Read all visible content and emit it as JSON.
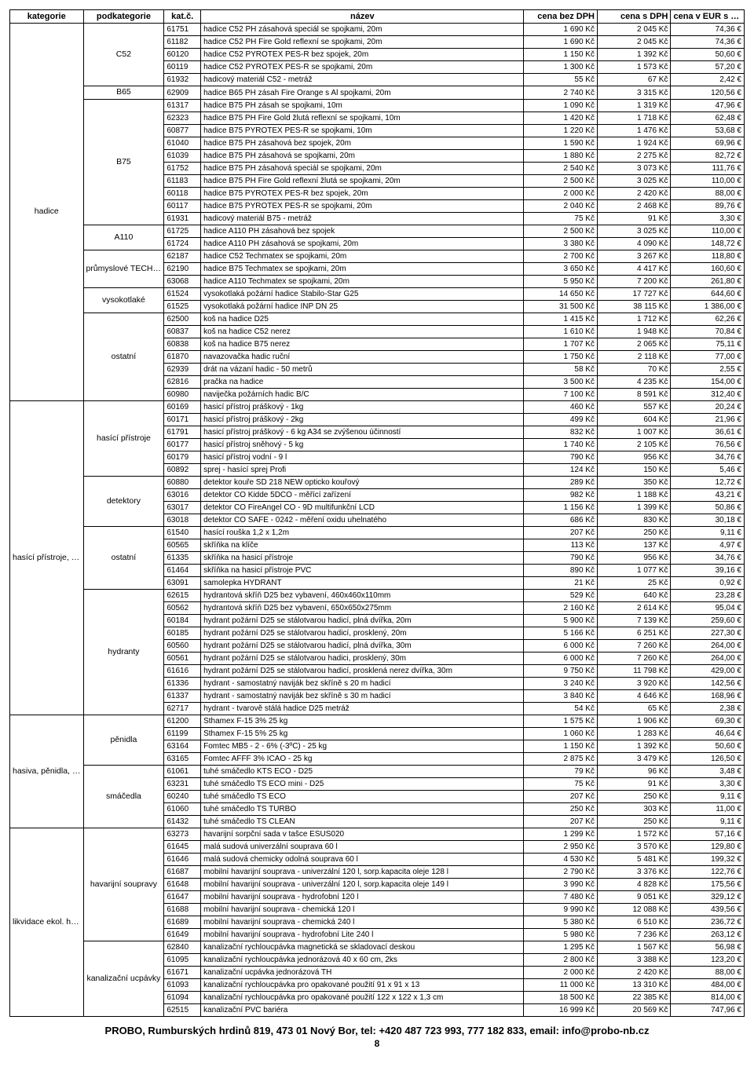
{
  "headers": {
    "kategorie": "kategorie",
    "podkategorie": "podkategorie",
    "katc": "kat.č.",
    "nazev": "název",
    "cena_bez": "cena bez DPH",
    "cena_s": "cena s DPH",
    "cena_eur": "cena v EUR s DPH"
  },
  "footer": "PROBO, Rumburských hrdinů 819, 473 01 Nový Bor, tel: +420 487 723 993, 777 182 833, email: info@probo-nb.cz",
  "page_number": "8",
  "categories": [
    {
      "name": "hadice",
      "subcategories": [
        {
          "name": "C52",
          "rows": [
            {
              "k": "61751",
              "n": "hadice C52 PH zásahová speciál se spojkami, 20m",
              "c1": "1 690 Kč",
              "c2": "2 045 Kč",
              "c3": "74,36 €"
            },
            {
              "k": "61182",
              "n": "hadice C52 PH Fire Gold  reflexní se spojkami, 20m",
              "c1": "1 690 Kč",
              "c2": "2 045 Kč",
              "c3": "74,36 €"
            },
            {
              "k": "60120",
              "n": "hadice C52 PYROTEX  PES-R bez spojek, 20m",
              "c1": "1 150 Kč",
              "c2": "1 392 Kč",
              "c3": "50,60 €"
            },
            {
              "k": "60119",
              "n": "hadice C52 PYROTEX  PES-R se spojkami, 20m",
              "c1": "1 300 Kč",
              "c2": "1 573 Kč",
              "c3": "57,20 €"
            },
            {
              "k": "61932",
              "n": "hadicový materiál C52 - metráž",
              "c1": "55 Kč",
              "c2": "67 Kč",
              "c3": "2,42 €"
            }
          ]
        },
        {
          "name": "B65",
          "rows": [
            {
              "k": "62909",
              "n": "hadice B65 PH zásah Fire Orange s Al spojkami, 20m",
              "c1": "2 740 Kč",
              "c2": "3 315 Kč",
              "c3": "120,56 €"
            }
          ]
        },
        {
          "name": "B75",
          "rows": [
            {
              "k": "61317",
              "n": "hadice B75 PH zásah se spojkami, 10m",
              "c1": "1 090 Kč",
              "c2": "1 319 Kč",
              "c3": "47,96 €"
            },
            {
              "k": "62323",
              "n": "hadice B75 PH Fire Gold žlutá reflexní se spojkami, 10m",
              "c1": "1 420 Kč",
              "c2": "1 718 Kč",
              "c3": "62,48 €"
            },
            {
              "k": "60877",
              "n": "hadice B75 PYROTEX PES-R se spojkami, 10m",
              "c1": "1 220 Kč",
              "c2": "1 476 Kč",
              "c3": "53,68 €"
            },
            {
              "k": "61040",
              "n": "hadice B75 PH zásahová bez spojek, 20m",
              "c1": "1 590 Kč",
              "c2": "1 924 Kč",
              "c3": "69,96 €"
            },
            {
              "k": "61039",
              "n": "hadice B75 PH zásahová se spojkami, 20m",
              "c1": "1 880 Kč",
              "c2": "2 275 Kč",
              "c3": "82,72 €"
            },
            {
              "k": "61752",
              "n": "hadice B75 PH zásahová speciál se spojkami, 20m",
              "c1": "2 540 Kč",
              "c2": "3 073 Kč",
              "c3": "111,76 €"
            },
            {
              "k": "61183",
              "n": "hadice B75 PH Fire Gold  reflexní žlutá se spojkami, 20m",
              "c1": "2 500 Kč",
              "c2": "3 025 Kč",
              "c3": "110,00 €"
            },
            {
              "k": "60118",
              "n": "hadice B75  PYROTEX  PES-R bez spojek, 20m",
              "c1": "2 000 Kč",
              "c2": "2 420 Kč",
              "c3": "88,00 €"
            },
            {
              "k": "60117",
              "n": "hadice B75 PYROTEX PES-R se spojkami, 20m",
              "c1": "2 040 Kč",
              "c2": "2 468 Kč",
              "c3": "89,76 €"
            },
            {
              "k": "61931",
              "n": "hadicový materiál B75 - metráž",
              "c1": "75 Kč",
              "c2": "91 Kč",
              "c3": "3,30 €"
            }
          ]
        },
        {
          "name": "A110",
          "rows": [
            {
              "k": "61725",
              "n": "hadice A110 PH zásahová bez spojek",
              "c1": "2 500 Kč",
              "c2": "3 025 Kč",
              "c3": "110,00 €"
            },
            {
              "k": "61724",
              "n": "hadice A110 PH zásahová se spojkami, 20m",
              "c1": "3 380 Kč",
              "c2": "4 090 Kč",
              "c3": "148,72 €"
            }
          ]
        },
        {
          "name": "průmyslové TECHMATEX",
          "rows": [
            {
              "k": "62187",
              "n": "hadice C52 Techmatex se spojkami, 20m",
              "c1": "2 700 Kč",
              "c2": "3 267 Kč",
              "c3": "118,80 €"
            },
            {
              "k": "62190",
              "n": "hadice B75 Techmatex se spojkami, 20m",
              "c1": "3 650 Kč",
              "c2": "4 417 Kč",
              "c3": "160,60 €"
            },
            {
              "k": "63068",
              "n": "hadice A110 Techmatex se spojkami, 20m",
              "c1": "5 950 Kč",
              "c2": "7 200 Kč",
              "c3": "261,80 €"
            }
          ]
        },
        {
          "name": "vysokotlaké",
          "rows": [
            {
              "k": "61524",
              "n": "vysokotlaká požární hadice Stabilo-Star G25",
              "c1": "14 650 Kč",
              "c2": "17 727 Kč",
              "c3": "644,60 €"
            },
            {
              "k": "61525",
              "n": "vysokotlaká požární hadice INP DN 25",
              "c1": "31 500 Kč",
              "c2": "38 115 Kč",
              "c3": "1 386,00 €"
            }
          ]
        },
        {
          "name": "ostatní",
          "rows": [
            {
              "k": "62500",
              "n": "koš na hadice D25",
              "c1": "1 415 Kč",
              "c2": "1 712 Kč",
              "c3": "62,26 €"
            },
            {
              "k": "60837",
              "n": "koš na hadice C52 nerez",
              "c1": "1 610 Kč",
              "c2": "1 948 Kč",
              "c3": "70,84 €"
            },
            {
              "k": "60838",
              "n": "koš na hadice B75 nerez",
              "c1": "1 707 Kč",
              "c2": "2 065 Kč",
              "c3": "75,11 €"
            },
            {
              "k": "61870",
              "n": "navazovačka hadic ruční",
              "c1": "1 750 Kč",
              "c2": "2 118 Kč",
              "c3": "77,00 €"
            },
            {
              "k": "62939",
              "n": "drát na vázaní hadic - 50 metrů",
              "c1": "58 Kč",
              "c2": "70 Kč",
              "c3": "2,55 €"
            },
            {
              "k": "62816",
              "n": "pračka na hadice",
              "c1": "3 500 Kč",
              "c2": "4 235 Kč",
              "c3": "154,00 €"
            },
            {
              "k": "60980",
              "n": "naviječka požárních hadic B/C",
              "c1": "7 100 Kč",
              "c2": "8 591 Kč",
              "c3": "312,40 €"
            }
          ]
        }
      ]
    },
    {
      "name": "hasící přístroje, hydranty",
      "subcategories": [
        {
          "name": "hasící přístroje",
          "rows": [
            {
              "k": "60169",
              "n": "hasicí přístroj práškový - 1kg",
              "c1": "460 Kč",
              "c2": "557 Kč",
              "c3": "20,24 €"
            },
            {
              "k": "60171",
              "n": "hasicí přístroj práškový - 2kg",
              "c1": "499 Kč",
              "c2": "604 Kč",
              "c3": "21,96 €"
            },
            {
              "k": "61791",
              "n": "hasicí přístroj práškový - 6 kg A34 se zvýšenou účinností",
              "c1": "832 Kč",
              "c2": "1 007 Kč",
              "c3": "36,61 €"
            },
            {
              "k": "60177",
              "n": "hasicí přístroj sněhový - 5 kg",
              "c1": "1 740 Kč",
              "c2": "2 105 Kč",
              "c3": "76,56 €"
            },
            {
              "k": "60179",
              "n": "hasicí přístroj vodní - 9 l",
              "c1": "790 Kč",
              "c2": "956 Kč",
              "c3": "34,76 €"
            },
            {
              "k": "60892",
              "n": "sprej - hasící sprej Profi",
              "c1": "124 Kč",
              "c2": "150 Kč",
              "c3": "5,46 €"
            }
          ]
        },
        {
          "name": "detektory",
          "rows": [
            {
              "k": "60880",
              "n": "detektor kouře SD 218 NEW opticko kouřový",
              "c1": "289 Kč",
              "c2": "350 Kč",
              "c3": "12,72 €"
            },
            {
              "k": "63016",
              "n": "detektor CO Kidde 5DCO - měřící zařízení",
              "c1": "982 Kč",
              "c2": "1 188 Kč",
              "c3": "43,21 €"
            },
            {
              "k": "63017",
              "n": "detektor CO FireAngel CO - 9D multifunkční LCD",
              "c1": "1 156 Kč",
              "c2": "1 399 Kč",
              "c3": "50,86 €"
            },
            {
              "k": "63018",
              "n": "detektor CO SAFE - 0242 - měření oxidu uhelnatého",
              "c1": "686 Kč",
              "c2": "830 Kč",
              "c3": "30,18 €"
            }
          ]
        },
        {
          "name": "ostatní",
          "rows": [
            {
              "k": "61540",
              "n": "hasící rouška 1,2 x 1,2m",
              "c1": "207 Kč",
              "c2": "250 Kč",
              "c3": "9,11 €"
            },
            {
              "k": "60565",
              "n": "skříňka na klíče",
              "c1": "113 Kč",
              "c2": "137 Kč",
              "c3": "4,97 €"
            },
            {
              "k": "61335",
              "n": "skříňka na hasicí přístroje",
              "c1": "790 Kč",
              "c2": "956 Kč",
              "c3": "34,76 €"
            },
            {
              "k": "61464",
              "n": "skříňka na hasicí přístroje PVC",
              "c1": "890 Kč",
              "c2": "1 077 Kč",
              "c3": "39,16 €"
            },
            {
              "k": "63091",
              "n": "samolepka HYDRANT",
              "c1": "21 Kč",
              "c2": "25 Kč",
              "c3": "0,92 €"
            }
          ]
        },
        {
          "name": "hydranty",
          "rows": [
            {
              "k": "62615",
              "n": "hydrantová skříň  D25 bez vybavení, 460x460x110mm",
              "c1": "529 Kč",
              "c2": "640 Kč",
              "c3": "23,28 €"
            },
            {
              "k": "60562",
              "n": "hydrantová skříň  D25 bez vybavení, 650x650x275mm",
              "c1": "2 160 Kč",
              "c2": "2 614 Kč",
              "c3": "95,04 €"
            },
            {
              "k": "60184",
              "n": "hydrant požární D25 se stálotvarou hadicí, plná dvířka, 20m",
              "c1": "5 900 Kč",
              "c2": "7 139 Kč",
              "c3": "259,60 €"
            },
            {
              "k": "60185",
              "n": "hydrant požární  D25 se stálotvarou hadicí, prosklený, 20m",
              "c1": "5 166 Kč",
              "c2": "6 251 Kč",
              "c3": "227,30 €"
            },
            {
              "k": "60560",
              "n": "hydrant požární  D25 se stálotvarou hadicí, plná dvířka, 30m",
              "c1": "6 000 Kč",
              "c2": "7 260 Kč",
              "c3": "264,00 €"
            },
            {
              "k": "60561",
              "n": "hydrant požární D25 se stálotvarou hadici, prosklený, 30m",
              "c1": "6 000 Kč",
              "c2": "7 260 Kč",
              "c3": "264,00 €"
            },
            {
              "k": "61616",
              "n": "hydrant požární D25 se stálotvarou hadicí, prosklená nerez dvířka, 30m",
              "c1": "9 750 Kč",
              "c2": "11 798 Kč",
              "c3": "429,00 €"
            },
            {
              "k": "61336",
              "n": "hydrant - samostatný naviják bez skříně s 20 m hadicí",
              "c1": "3 240 Kč",
              "c2": "3 920 Kč",
              "c3": "142,56 €"
            },
            {
              "k": "61337",
              "n": "hydrant - samostatný naviják bez skříně s 30 m hadicí",
              "c1": "3 840 Kč",
              "c2": "4 646 Kč",
              "c3": "168,96 €"
            },
            {
              "k": "62717",
              "n": "hydrant - tvarově stálá hadice D25 metráž",
              "c1": "54 Kč",
              "c2": "65 Kč",
              "c3": "2,38 €"
            }
          ]
        }
      ]
    },
    {
      "name": "hasiva, pěnidla, smáčedla",
      "subcategories": [
        {
          "name": "pěnidla",
          "rows": [
            {
              "k": "61200",
              "n": "Sthamex F-15 3% 25 kg",
              "c1": "1 575 Kč",
              "c2": "1 906 Kč",
              "c3": "69,30 €"
            },
            {
              "k": "61199",
              "n": "Sthamex F-15 5% 25 kg",
              "c1": "1 060 Kč",
              "c2": "1 283 Kč",
              "c3": "46,64 €"
            },
            {
              "k": "63164",
              "n": "Fomtec MB5 - 2 - 6% (-3ºC) - 25 kg",
              "c1": "1 150 Kč",
              "c2": "1 392 Kč",
              "c3": "50,60 €"
            },
            {
              "k": "63165",
              "n": "Fomtec AFFF 3% ICAO - 25 kg",
              "c1": "2 875 Kč",
              "c2": "3 479 Kč",
              "c3": "126,50 €"
            }
          ]
        },
        {
          "name": "smáčedla",
          "rows": [
            {
              "k": "61061",
              "n": "tuhé smáčedlo KTS ECO - D25",
              "c1": "79 Kč",
              "c2": "96 Kč",
              "c3": "3,48 €"
            },
            {
              "k": "63231",
              "n": "tuhé smáčedlo TS ECO mini - D25",
              "c1": "75 Kč",
              "c2": "91 Kč",
              "c3": "3,30 €"
            },
            {
              "k": "60240",
              "n": "tuhé smáčedlo TS ECO",
              "c1": "207 Kč",
              "c2": "250 Kč",
              "c3": "9,11 €"
            },
            {
              "k": "61060",
              "n": "tuhé smáčedlo TS TURBO",
              "c1": "250 Kč",
              "c2": "303 Kč",
              "c3": "11,00 €"
            },
            {
              "k": "61432",
              "n": "tuhé smáčedlo TS CLEAN",
              "c1": "207 Kč",
              "c2": "250 Kč",
              "c3": "9,11 €"
            }
          ]
        }
      ]
    },
    {
      "name": "likvidace ekol. havárií",
      "subcategories": [
        {
          "name": "havarijní soupravy",
          "rows": [
            {
              "k": "63273",
              "n": "havarijní sorpční sada v tašce ESUS020",
              "c1": "1 299 Kč",
              "c2": "1 572 Kč",
              "c3": "57,16 €"
            },
            {
              "k": "61645",
              "n": "malá sudová univerzální souprava 60 l",
              "c1": "2 950 Kč",
              "c2": "3 570 Kč",
              "c3": "129,80 €"
            },
            {
              "k": "61646",
              "n": "malá sudová chemicky odolná souprava 60 l",
              "c1": "4 530 Kč",
              "c2": "5 481 Kč",
              "c3": "199,32 €"
            },
            {
              "k": "61687",
              "n": "mobilní havarijní souprava - univerzální 120 l, sorp.kapacita oleje 128 l",
              "c1": "2 790 Kč",
              "c2": "3 376 Kč",
              "c3": "122,76 €"
            },
            {
              "k": "61648",
              "n": "mobilní havarijní souprava - univerzální 120 l, sorp.kapacita oleje 149 l",
              "c1": "3 990 Kč",
              "c2": "4 828 Kč",
              "c3": "175,56 €"
            },
            {
              "k": "61647",
              "n": "mobilní havarijní souprava - hydrofobní 120 l",
              "c1": "7 480 Kč",
              "c2": "9 051 Kč",
              "c3": "329,12 €"
            },
            {
              "k": "61688",
              "n": "mobilní havarijní souprava - chemická 120 l",
              "c1": "9 990 Kč",
              "c2": "12 088 Kč",
              "c3": "439,56 €"
            },
            {
              "k": "61689",
              "n": "mobilní havarijní souprava - chemická 240 l",
              "c1": "5 380 Kč",
              "c2": "6 510 Kč",
              "c3": "236,72 €"
            },
            {
              "k": "61649",
              "n": "mobilní havarijní souprava - hydrofobní Lite 240 l",
              "c1": "5 980 Kč",
              "c2": "7 236 Kč",
              "c3": "263,12 €"
            }
          ]
        },
        {
          "name": "kanalizační ucpávky",
          "rows": [
            {
              "k": "62840",
              "n": "kanalizační rychloucpávka magnetická se skladovací deskou",
              "c1": "1 295 Kč",
              "c2": "1 567 Kč",
              "c3": "56,98 €"
            },
            {
              "k": "61095",
              "n": "kanalizační rychloucpávka jednorázová 40 x 60 cm, 2ks",
              "c1": "2 800 Kč",
              "c2": "3 388 Kč",
              "c3": "123,20 €"
            },
            {
              "k": "61671",
              "n": "kanalizační ucpávka jednorázová TH",
              "c1": "2 000 Kč",
              "c2": "2 420 Kč",
              "c3": "88,00 €"
            },
            {
              "k": "61093",
              "n": "kanalizační rychloucpávka pro opakované použití  91 x 91 x 13",
              "c1": "11 000 Kč",
              "c2": "13 310 Kč",
              "c3": "484,00 €"
            },
            {
              "k": "61094",
              "n": "kanalizační rychloucpávka pro opakované použití  122 x 122 x 1,3 cm",
              "c1": "18 500 Kč",
              "c2": "22 385 Kč",
              "c3": "814,00 €"
            },
            {
              "k": "62515",
              "n": "kanalizační PVC bariéra",
              "c1": "16 999 Kč",
              "c2": "20 569 Kč",
              "c3": "747,96 €"
            }
          ]
        }
      ]
    }
  ]
}
